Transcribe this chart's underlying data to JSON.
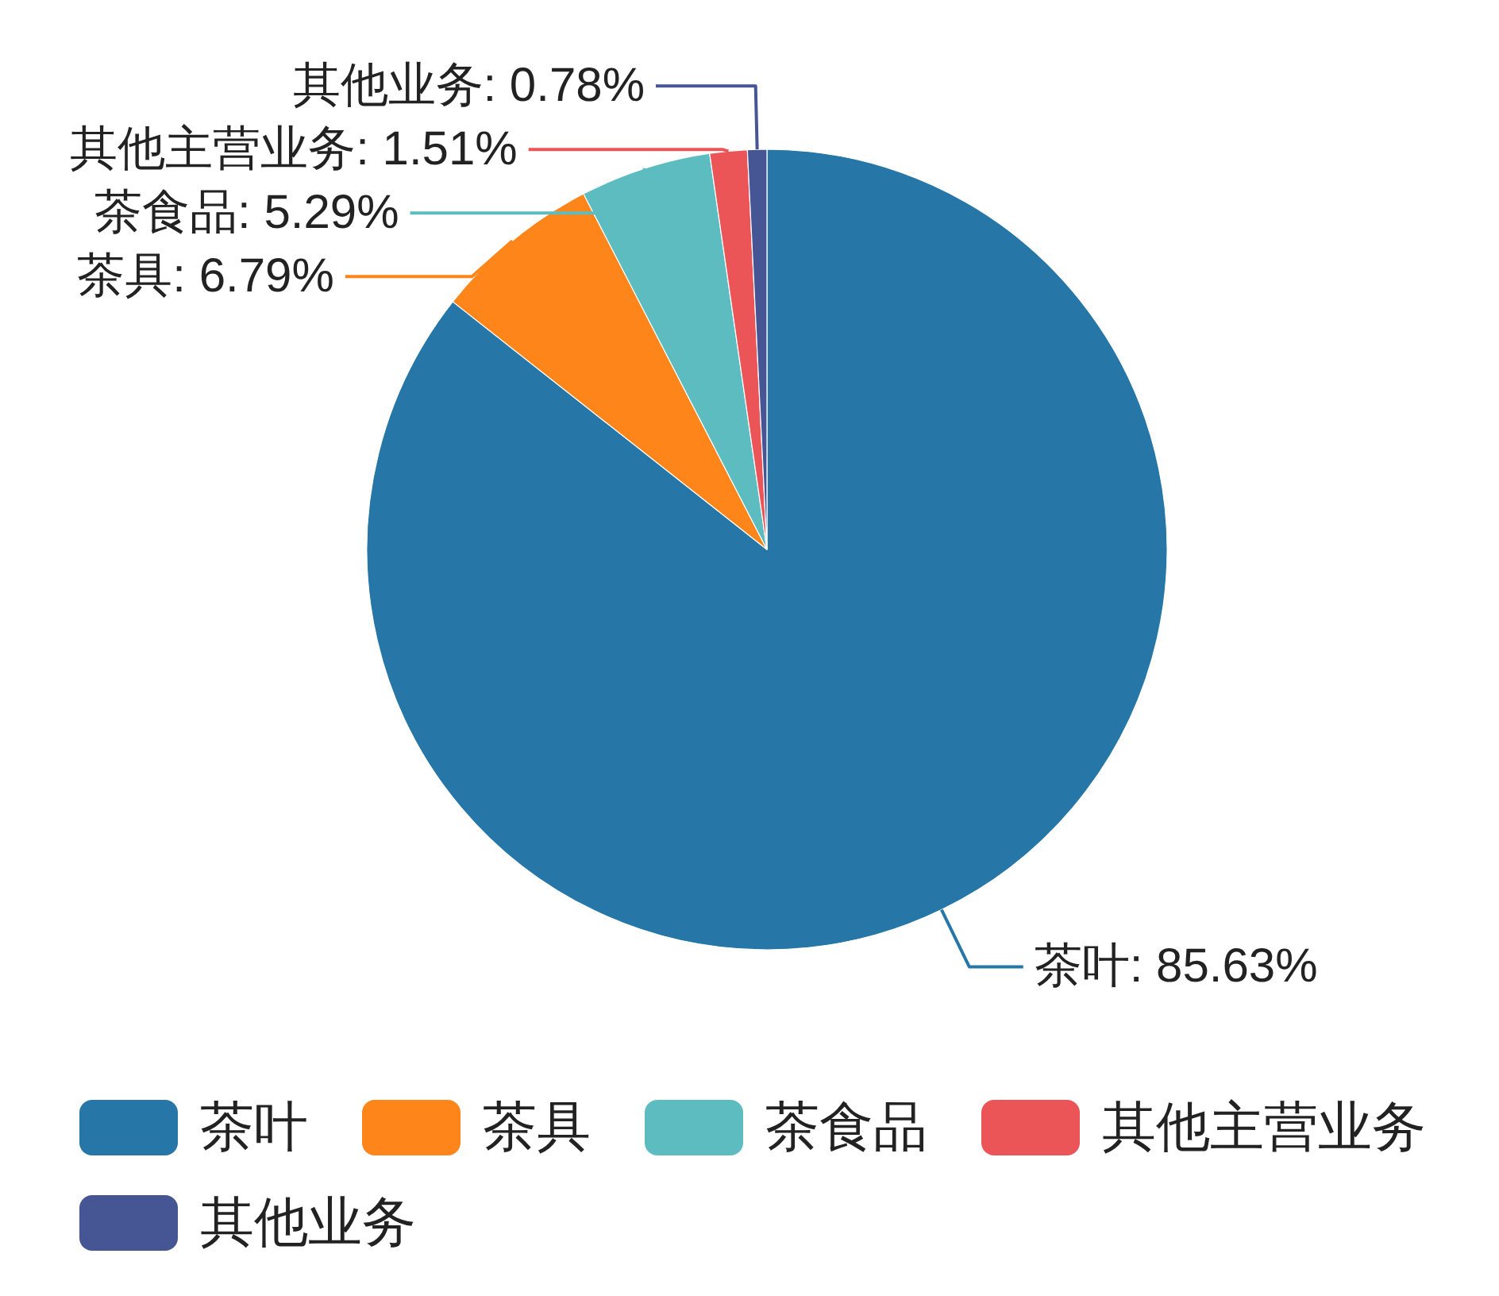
{
  "chart_data": {
    "type": "pie",
    "categories": [
      "茶叶",
      "茶具",
      "茶食品",
      "其他主营业务",
      "其他业务"
    ],
    "values": [
      85.63,
      6.79,
      5.29,
      1.51,
      0.78
    ],
    "value_labels": [
      "茶叶: 85.63%",
      "茶具: 6.79%",
      "茶食品: 5.29%",
      "其他主营业务: 1.51%",
      "其他业务: 0.78%"
    ],
    "colors": [
      "#2677a7",
      "#fd851a",
      "#5dbcbf",
      "#ec5558",
      "#465594"
    ],
    "legend": "bottom"
  }
}
